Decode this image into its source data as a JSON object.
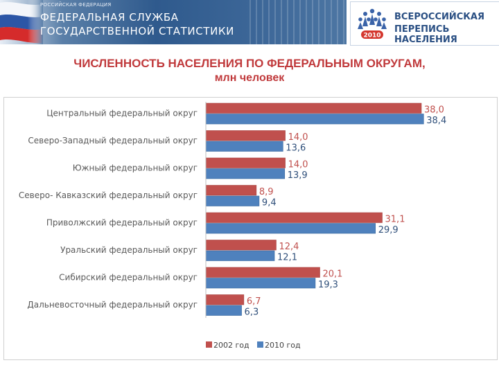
{
  "header": {
    "org_small": "РОССИЙСКАЯ ФЕДЕРАЦИЯ",
    "org_line1": "ФЕДЕРАЛЬНАЯ СЛУЖБА",
    "org_line2": "ГОСУДАРСТВЕННОЙ СТАТИСТИКИ",
    "census_line1": "ВСЕРОССИЙСКАЯ",
    "census_line2": "ПЕРЕПИСЬ НАСЕЛЕНИЯ",
    "census_year": "2010"
  },
  "colors": {
    "series_2002": "#c0504d",
    "series_2010": "#4f81bd",
    "title": "#c0393b"
  },
  "chart_data": {
    "type": "bar",
    "orientation": "horizontal",
    "title": "ЧИСЛЕННОСТЬ НАСЕЛЕНИЯ ПО ФЕДЕРАЛЬНЫМ ОКРУГАМ,",
    "subtitle": "млн человек",
    "categories": [
      "Центральный федеральный округ",
      "Северо-Западный федеральный округ",
      "Южный федеральный округ",
      "Северо- Кавказский федеральный округ",
      "Приволжский федеральный округ",
      "Уральский федеральный округ",
      "Сибирский федеральный округ",
      "Дальневосточный федеральный округ"
    ],
    "series": [
      {
        "name": "2002 год",
        "values": [
          38.0,
          14.0,
          14.0,
          8.9,
          31.1,
          12.4,
          20.1,
          6.7
        ],
        "labels": [
          "38,0",
          "14,0",
          "14,0",
          "8,9",
          "31,1",
          "12,4",
          "20,1",
          "6,7"
        ]
      },
      {
        "name": "2010 год",
        "values": [
          38.4,
          13.6,
          13.9,
          9.4,
          29.9,
          12.1,
          19.3,
          6.3
        ],
        "labels": [
          "38,4",
          "13,6",
          "13,9",
          "9,4",
          "29,9",
          "12,1",
          "19,3",
          "6,3"
        ]
      }
    ],
    "xlim": [
      0,
      40
    ],
    "legend": "bottom",
    "grid": false
  }
}
